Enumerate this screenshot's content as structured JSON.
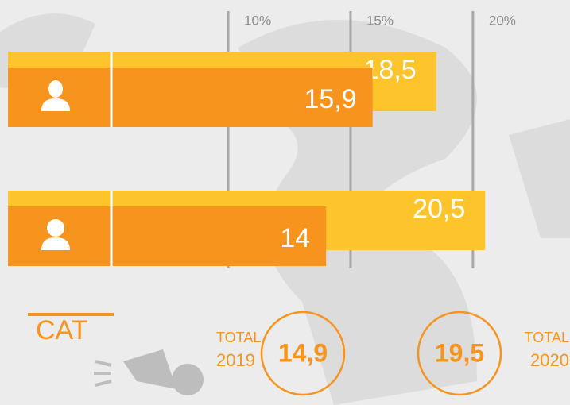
{
  "chart_data": {
    "type": "bar",
    "orientation": "horizontal",
    "categories": [
      null,
      null
    ],
    "xlim": [
      1,
      24
    ],
    "xticks": [
      {
        "value": 10,
        "label": "10%"
      },
      {
        "value": 15,
        "label": "15%"
      },
      {
        "value": 20,
        "label": "20%"
      }
    ],
    "grid": true,
    "series": [
      {
        "name": "2020",
        "color": "#fdc42b",
        "values": [
          18.5,
          20.5
        ],
        "value_labels": [
          "18,5",
          "20,5"
        ],
        "total": 19.5,
        "total_label": "19,5"
      },
      {
        "name": "2019",
        "color": "#f7941d",
        "values": [
          15.9,
          14
        ],
        "value_labels": [
          "15,9",
          "14"
        ],
        "total": 14.9,
        "total_label": "14,9"
      }
    ],
    "total_text": "TOTAL",
    "region": "CAT"
  }
}
